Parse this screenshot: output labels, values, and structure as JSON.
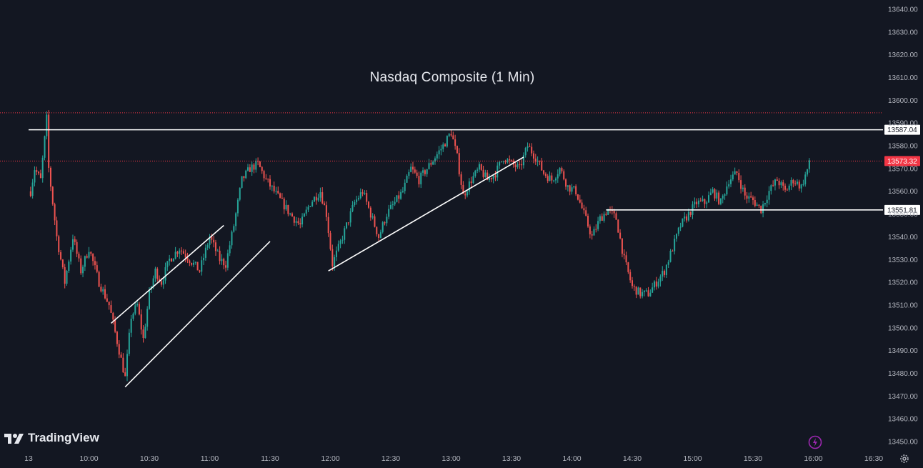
{
  "chart_data": {
    "type": "candlestick",
    "title": "Nasdaq Composite (1 Min)",
    "xlabel": "",
    "ylabel": "",
    "ylim": [
      13445,
      13645
    ],
    "y_ticks": [
      "13450.00",
      "13460.00",
      "13470.00",
      "13480.00",
      "13490.00",
      "13500.00",
      "13510.00",
      "13520.00",
      "13530.00",
      "13540.00",
      "13550.00",
      "13560.00",
      "13570.00",
      "13580.00",
      "13590.00",
      "13600.00",
      "13610.00",
      "13620.00",
      "13630.00",
      "13640.00"
    ],
    "x_ticks": [
      {
        "label": "13",
        "t": "9:30"
      },
      {
        "label": "10:00",
        "t": "10:00"
      },
      {
        "label": "10:30",
        "t": "10:30"
      },
      {
        "label": "11:00",
        "t": "11:00"
      },
      {
        "label": "11:30",
        "t": "11:30"
      },
      {
        "label": "12:00",
        "t": "12:00"
      },
      {
        "label": "12:30",
        "t": "12:30"
      },
      {
        "label": "13:00",
        "t": "13:00"
      },
      {
        "label": "13:30",
        "t": "13:30"
      },
      {
        "label": "14:00",
        "t": "14:00"
      },
      {
        "label": "14:30",
        "t": "14:30"
      },
      {
        "label": "15:00",
        "t": "15:00"
      },
      {
        "label": "15:30",
        "t": "15:30"
      },
      {
        "label": "16:00",
        "t": "16:00"
      },
      {
        "label": "16:30",
        "t": "16:30"
      }
    ],
    "price_path": [
      [
        "9:31",
        13560
      ],
      [
        "9:33",
        13570
      ],
      [
        "9:36",
        13565
      ],
      [
        "9:39",
        13592
      ],
      [
        "9:40",
        13570
      ],
      [
        "9:44",
        13540
      ],
      [
        "9:48",
        13520
      ],
      [
        "9:52",
        13540
      ],
      [
        "9:56",
        13525
      ],
      [
        "10:00",
        13535
      ],
      [
        "10:05",
        13520
      ],
      [
        "10:10",
        13510
      ],
      [
        "10:15",
        13490
      ],
      [
        "10:18",
        13478
      ],
      [
        "10:21",
        13505
      ],
      [
        "10:24",
        13510
      ],
      [
        "10:27",
        13495
      ],
      [
        "10:30",
        13515
      ],
      [
        "10:33",
        13525
      ],
      [
        "10:36",
        13520
      ],
      [
        "10:40",
        13530
      ],
      [
        "10:45",
        13535
      ],
      [
        "10:50",
        13530
      ],
      [
        "10:55",
        13525
      ],
      [
        "11:00",
        13540
      ],
      [
        "11:05",
        13530
      ],
      [
        "11:08",
        13528
      ],
      [
        "11:12",
        13545
      ],
      [
        "11:16",
        13565
      ],
      [
        "11:20",
        13570
      ],
      [
        "11:24",
        13572
      ],
      [
        "11:28",
        13565
      ],
      [
        "11:32",
        13560
      ],
      [
        "11:36",
        13555
      ],
      [
        "11:40",
        13550
      ],
      [
        "11:45",
        13545
      ],
      [
        "11:50",
        13555
      ],
      [
        "11:55",
        13560
      ],
      [
        "11:58",
        13550
      ],
      [
        "12:01",
        13528
      ],
      [
        "12:04",
        13535
      ],
      [
        "12:08",
        13545
      ],
      [
        "12:12",
        13555
      ],
      [
        "12:16",
        13560
      ],
      [
        "12:20",
        13550
      ],
      [
        "12:24",
        13540
      ],
      [
        "12:28",
        13550
      ],
      [
        "12:32",
        13555
      ],
      [
        "12:36",
        13560
      ],
      [
        "12:40",
        13570
      ],
      [
        "12:44",
        13565
      ],
      [
        "12:48",
        13570
      ],
      [
        "12:52",
        13575
      ],
      [
        "12:56",
        13580
      ],
      [
        "13:00",
        13586
      ],
      [
        "13:03",
        13575
      ],
      [
        "13:06",
        13558
      ],
      [
        "13:10",
        13565
      ],
      [
        "13:14",
        13570
      ],
      [
        "13:18",
        13565
      ],
      [
        "13:22",
        13568
      ],
      [
        "13:26",
        13575
      ],
      [
        "13:30",
        13572
      ],
      [
        "13:34",
        13570
      ],
      [
        "13:38",
        13580
      ],
      [
        "13:42",
        13575
      ],
      [
        "13:46",
        13568
      ],
      [
        "13:50",
        13565
      ],
      [
        "13:54",
        13570
      ],
      [
        "13:58",
        13562
      ],
      [
        "14:02",
        13560
      ],
      [
        "14:06",
        13550
      ],
      [
        "14:10",
        13540
      ],
      [
        "14:14",
        13548
      ],
      [
        "14:18",
        13552
      ],
      [
        "14:22",
        13548
      ],
      [
        "14:26",
        13530
      ],
      [
        "14:30",
        13518
      ],
      [
        "14:34",
        13515
      ],
      [
        "14:38",
        13515
      ],
      [
        "14:42",
        13520
      ],
      [
        "14:46",
        13525
      ],
      [
        "14:50",
        13535
      ],
      [
        "14:54",
        13545
      ],
      [
        "14:58",
        13550
      ],
      [
        "15:02",
        13555
      ],
      [
        "15:06",
        13555
      ],
      [
        "15:10",
        13560
      ],
      [
        "15:14",
        13555
      ],
      [
        "15:18",
        13565
      ],
      [
        "15:22",
        13568
      ],
      [
        "15:26",
        13558
      ],
      [
        "15:30",
        13556
      ],
      [
        "15:34",
        13552
      ],
      [
        "15:38",
        13560
      ],
      [
        "15:42",
        13565
      ],
      [
        "15:46",
        13560
      ],
      [
        "15:50",
        13565
      ],
      [
        "15:54",
        13562
      ],
      [
        "15:58",
        13572
      ]
    ],
    "horizontal_lines": [
      {
        "value": 13587.04,
        "label": "13587.04",
        "style": "solid",
        "color": "#ffffff",
        "t_start": "9:30"
      },
      {
        "value": 13551.81,
        "label": "13551.81",
        "style": "solid",
        "color": "#ffffff",
        "t_start": "14:17"
      },
      {
        "value": 13573.32,
        "label": "13573.32",
        "style": "dotted",
        "color": "#f23645",
        "t_start": "9:30"
      },
      {
        "value": 13594.5,
        "label": "",
        "style": "dotted",
        "color": "#f23645",
        "t_start": "9:30"
      }
    ],
    "trend_lines": [
      {
        "t1": "10:11",
        "v1": 13502,
        "t2": "11:07",
        "v2": 13545
      },
      {
        "t1": "10:18",
        "v1": 13474,
        "t2": "11:30",
        "v2": 13538
      },
      {
        "t1": "11:59",
        "v1": 13525,
        "t2": "13:36",
        "v2": 13575
      }
    ],
    "last_price": {
      "value": 13573.32,
      "label": "13573.32",
      "color": "#f23645"
    },
    "colors": {
      "up": "#26a69a",
      "down": "#ef5350",
      "background": "#131722",
      "axis_text": "#b2b5be"
    }
  },
  "branding": {
    "logo_text": "TradingView"
  },
  "icons": {
    "settings": "gear-icon",
    "bolt": "lightning-icon",
    "logo": "tradingview-logo-icon"
  }
}
